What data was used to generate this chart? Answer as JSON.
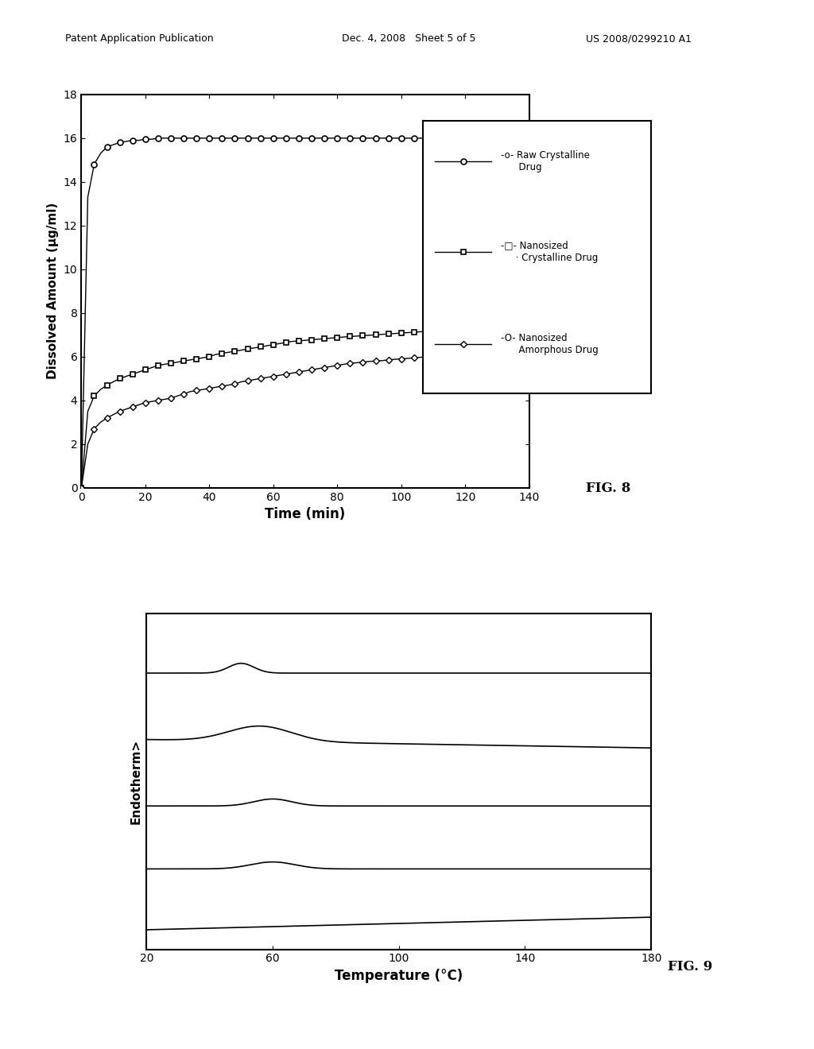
{
  "fig8": {
    "xlabel": "Time (min)",
    "ylabel": "Dissolved Amount (μg/ml)",
    "xlim": [
      0,
      140
    ],
    "ylim": [
      0,
      18
    ],
    "yticks": [
      0,
      2,
      4,
      6,
      8,
      10,
      12,
      14,
      16,
      18
    ],
    "xticks": [
      0,
      20,
      40,
      60,
      80,
      100,
      120,
      140
    ],
    "series": {
      "raw_crystalline": {
        "x": [
          0,
          2,
          4,
          6,
          8,
          10,
          12,
          14,
          16,
          18,
          20,
          22,
          24,
          26,
          28,
          30,
          32,
          34,
          36,
          38,
          40,
          42,
          44,
          46,
          48,
          50,
          52,
          54,
          56,
          58,
          60,
          62,
          64,
          66,
          68,
          70,
          72,
          74,
          76,
          78,
          80,
          82,
          84,
          86,
          88,
          90,
          92,
          94,
          96,
          98,
          100,
          102,
          104,
          106,
          108,
          110,
          112,
          114,
          116,
          118,
          120
        ],
        "y": [
          0,
          13.3,
          14.8,
          15.3,
          15.6,
          15.7,
          15.8,
          15.85,
          15.9,
          15.9,
          15.95,
          15.95,
          16.0,
          16.0,
          16.0,
          16.0,
          16.0,
          16.0,
          16.0,
          16.0,
          16.0,
          16.0,
          16.0,
          16.0,
          16.0,
          16.0,
          16.0,
          16.0,
          16.0,
          16.0,
          16.0,
          16.0,
          16.0,
          16.0,
          16.0,
          16.0,
          16.0,
          16.0,
          16.0,
          16.0,
          16.0,
          16.0,
          16.0,
          16.0,
          16.0,
          16.0,
          16.0,
          16.0,
          16.0,
          16.0,
          16.0,
          16.0,
          16.0,
          16.0,
          16.0,
          16.0,
          16.0,
          16.0,
          16.0,
          16.0,
          16.0
        ]
      },
      "nanosized_crystalline": {
        "x": [
          0,
          2,
          4,
          6,
          8,
          10,
          12,
          14,
          16,
          18,
          20,
          22,
          24,
          26,
          28,
          30,
          32,
          34,
          36,
          38,
          40,
          42,
          44,
          46,
          48,
          50,
          52,
          54,
          56,
          58,
          60,
          62,
          64,
          66,
          68,
          70,
          72,
          74,
          76,
          78,
          80,
          82,
          84,
          86,
          88,
          90,
          92,
          94,
          96,
          98,
          100,
          102,
          104,
          106,
          108,
          110,
          112,
          114,
          116,
          118,
          120
        ],
        "y": [
          0,
          3.5,
          4.2,
          4.5,
          4.7,
          4.85,
          5.0,
          5.1,
          5.2,
          5.3,
          5.4,
          5.5,
          5.6,
          5.65,
          5.7,
          5.75,
          5.8,
          5.85,
          5.9,
          5.95,
          6.0,
          6.1,
          6.15,
          6.2,
          6.25,
          6.3,
          6.35,
          6.4,
          6.45,
          6.5,
          6.55,
          6.6,
          6.65,
          6.7,
          6.72,
          6.75,
          6.77,
          6.8,
          6.82,
          6.85,
          6.87,
          6.9,
          6.92,
          6.94,
          6.96,
          6.98,
          7.0,
          7.02,
          7.04,
          7.06,
          7.08,
          7.1,
          7.12,
          7.14,
          7.16,
          7.18,
          7.2,
          7.22,
          7.24,
          7.26,
          7.28
        ]
      },
      "nanosized_amorphous": {
        "x": [
          0,
          2,
          4,
          6,
          8,
          10,
          12,
          14,
          16,
          18,
          20,
          22,
          24,
          26,
          28,
          30,
          32,
          34,
          36,
          38,
          40,
          42,
          44,
          46,
          48,
          50,
          52,
          54,
          56,
          58,
          60,
          62,
          64,
          66,
          68,
          70,
          72,
          74,
          76,
          78,
          80,
          82,
          84,
          86,
          88,
          90,
          92,
          94,
          96,
          98,
          100,
          102,
          104,
          106,
          108,
          110,
          112,
          114,
          116,
          118,
          120
        ],
        "y": [
          0,
          2.0,
          2.7,
          3.0,
          3.2,
          3.35,
          3.5,
          3.6,
          3.7,
          3.8,
          3.9,
          3.95,
          4.0,
          4.05,
          4.1,
          4.2,
          4.3,
          4.4,
          4.45,
          4.5,
          4.55,
          4.6,
          4.65,
          4.7,
          4.75,
          4.85,
          4.9,
          4.95,
          5.0,
          5.05,
          5.1,
          5.15,
          5.2,
          5.25,
          5.3,
          5.35,
          5.4,
          5.45,
          5.5,
          5.55,
          5.6,
          5.65,
          5.7,
          5.72,
          5.75,
          5.78,
          5.8,
          5.82,
          5.85,
          5.88,
          5.9,
          5.92,
          5.95,
          5.97,
          6.0,
          6.02,
          6.05,
          6.07,
          6.1,
          6.12,
          6.15
        ]
      }
    }
  },
  "fig9": {
    "xlabel": "Temperature (°C)",
    "ylabel": "Endotherm>",
    "xlim": [
      20,
      180
    ],
    "xticks": [
      20,
      60,
      100,
      140,
      180
    ]
  },
  "header_left": "Patent Application Publication",
  "header_mid": "Dec. 4, 2008   Sheet 5 of 5",
  "header_right": "US 2008/0299210 A1",
  "bg_color": "#ffffff",
  "line_color": "#000000"
}
